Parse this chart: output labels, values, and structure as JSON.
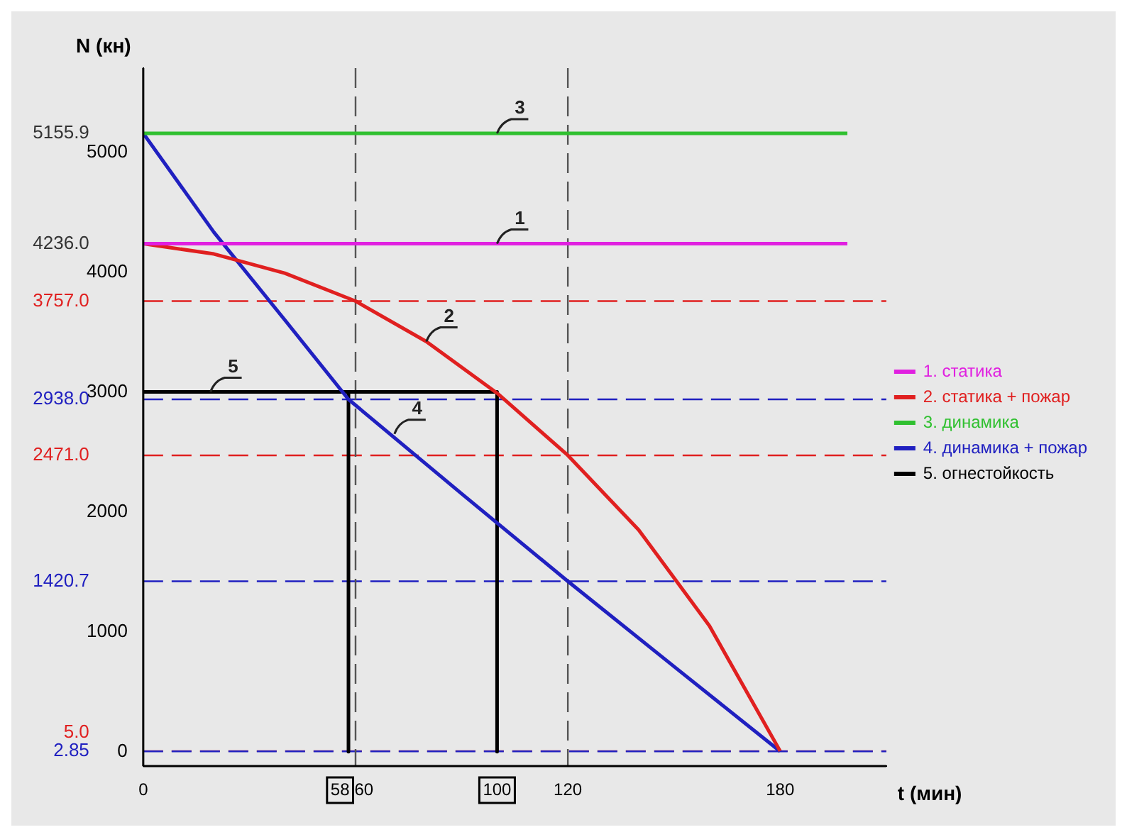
{
  "chart_data": {
    "type": "line",
    "xlabel": "t (мин)",
    "ylabel": "N (кн)",
    "xlim": [
      0,
      210
    ],
    "ylim": [
      -120,
      5700
    ],
    "xticks": [
      0,
      58,
      60,
      100,
      120,
      180
    ],
    "yticks": [
      0,
      1000,
      2000,
      3000,
      4000,
      5000
    ],
    "grid": false,
    "legend": "right",
    "marker": "none",
    "series": [
      {
        "name": "1. статика",
        "color": "#e020e0",
        "x": [
          0,
          199
        ],
        "values": [
          4236,
          4236
        ]
      },
      {
        "name": "2. статика + пожар",
        "color": "#e02020",
        "x": [
          0,
          20,
          40,
          60,
          80,
          100,
          120,
          140,
          160,
          180
        ],
        "values": [
          4236,
          4150,
          3990,
          3757,
          3420,
          2990,
          2471,
          1850,
          1050,
          5
        ]
      },
      {
        "name": "3. динамика",
        "color": "#30c030",
        "x": [
          0,
          199
        ],
        "values": [
          5155.9,
          5155.9
        ]
      },
      {
        "name": "4. динамика + пожар",
        "color": "#2020c0",
        "x": [
          0,
          20,
          40,
          58,
          90,
          120,
          150,
          180
        ],
        "values": [
          5155.9,
          4330,
          3600,
          2938,
          2150,
          1420.7,
          710,
          2.85
        ]
      },
      {
        "name": "5. огнестойкость",
        "color": "#000000",
        "x": [
          0,
          58,
          58,
          58,
          100,
          100
        ],
        "values": [
          3000,
          3000,
          0,
          3000,
          3000,
          0
        ]
      }
    ],
    "ref_lines": [
      {
        "axis": "y",
        "value": 3757,
        "label": "3757.0",
        "color": "#e02020",
        "line_style": "dashed"
      },
      {
        "axis": "y",
        "value": 2938,
        "label": "2938.0",
        "color": "#2020c0",
        "line_style": "dashed"
      },
      {
        "axis": "y",
        "value": 2471,
        "label": "2471.0",
        "color": "#e02020",
        "line_style": "dashed"
      },
      {
        "axis": "y",
        "value": 1420.7,
        "label": "1420.7",
        "color": "#2020c0",
        "line_style": "dashed"
      },
      {
        "axis": "y",
        "value": 5,
        "label": "5.0",
        "color": "#e02020",
        "line_style": "dashed"
      },
      {
        "axis": "y",
        "value": 2.85,
        "label": "2.85",
        "color": "#2020c0",
        "line_style": "dashed"
      },
      {
        "axis": "x",
        "value": 60,
        "color": "#555555",
        "line_style": "dashed"
      },
      {
        "axis": "x",
        "value": 120,
        "color": "#555555",
        "line_style": "dashed"
      }
    ],
    "annotations": [
      {
        "text": "5155.9",
        "x": 0,
        "y": 5155.9
      },
      {
        "text": "4236.0",
        "x": 0,
        "y": 4236
      },
      {
        "text": "1",
        "x": 100,
        "y": 4236
      },
      {
        "text": "2",
        "x": 80,
        "y": 3420
      },
      {
        "text": "3",
        "x": 100,
        "y": 5155.9
      },
      {
        "text": "4",
        "x": 71,
        "y": 2650
      },
      {
        "text": "5",
        "x": 19,
        "y": 3000
      }
    ]
  }
}
